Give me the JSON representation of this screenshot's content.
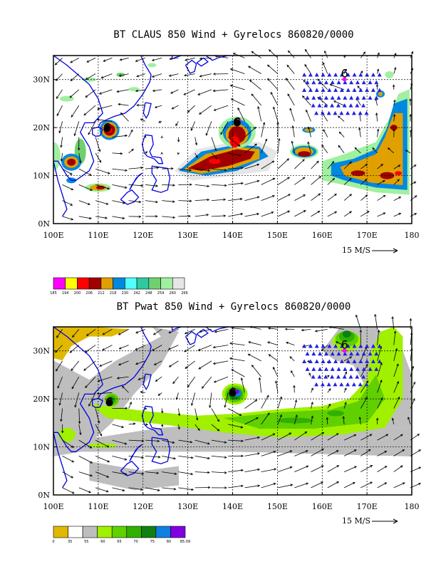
{
  "panels": [
    {
      "title": "BT CLAUS 850 Wind + Gyrelocs 860820/0000",
      "x_ticks": [
        "100E",
        "110E",
        "120E",
        "130E",
        "140E",
        "150E",
        "160E",
        "170E",
        "180"
      ],
      "y_ticks": [
        "0N",
        "10N",
        "20N",
        "30N"
      ],
      "reference_vector": "15 M/S",
      "colorbar": {
        "labels": [
          "185",
          "194",
          "200",
          "206",
          "212",
          "218",
          "230",
          "242",
          "248",
          "254",
          "260",
          "266"
        ],
        "colors": [
          "#ff00ff",
          "#ffff00",
          "#ff0000",
          "#a00000",
          "#e0a000",
          "#0088e0",
          "#50ffff",
          "#30c8a0",
          "#70d070",
          "#a0f0a0",
          "#e6e6e6"
        ]
      },
      "markers": [
        {
          "label": "6",
          "lon": 165.0,
          "lat": 30.5
        },
        {
          "label": "",
          "lon": 141.0,
          "lat": 21.0
        },
        {
          "label": "",
          "lon": 112.0,
          "lat": 19.8
        }
      ]
    },
    {
      "title": "BT Pwat 850 Wind + Gyrelocs 860820/0000",
      "x_ticks": [
        "100E",
        "110E",
        "120E",
        "130E",
        "140E",
        "150E",
        "160E",
        "170E",
        "180"
      ],
      "y_ticks": [
        "0N",
        "10N",
        "20N",
        "30N"
      ],
      "reference_vector": "15 M/S",
      "colorbar": {
        "labels": [
          "0",
          "35",
          "55",
          "60",
          "65",
          "70",
          "75",
          "80",
          "85.09"
        ],
        "colors": [
          "#e0b800",
          "#ffffff",
          "#bebebe",
          "#a0f000",
          "#60d000",
          "#30b000",
          "#108010",
          "#1080e0",
          "#8000e0"
        ]
      },
      "markers": [
        {
          "label": "6",
          "lon": 165.0,
          "lat": 30.5
        },
        {
          "label": "",
          "lon": 140.0,
          "lat": 21.2
        },
        {
          "label": "",
          "lon": 112.5,
          "lat": 19.2
        }
      ]
    }
  ],
  "chart_data": {
    "type": "heatmap",
    "lon_range": [
      100,
      180
    ],
    "lat_range": [
      0,
      35
    ],
    "grid": true,
    "colors": {
      "coast": "#0000e0",
      "triangle": "#2020e0",
      "arrow": "#000000"
    }
  }
}
